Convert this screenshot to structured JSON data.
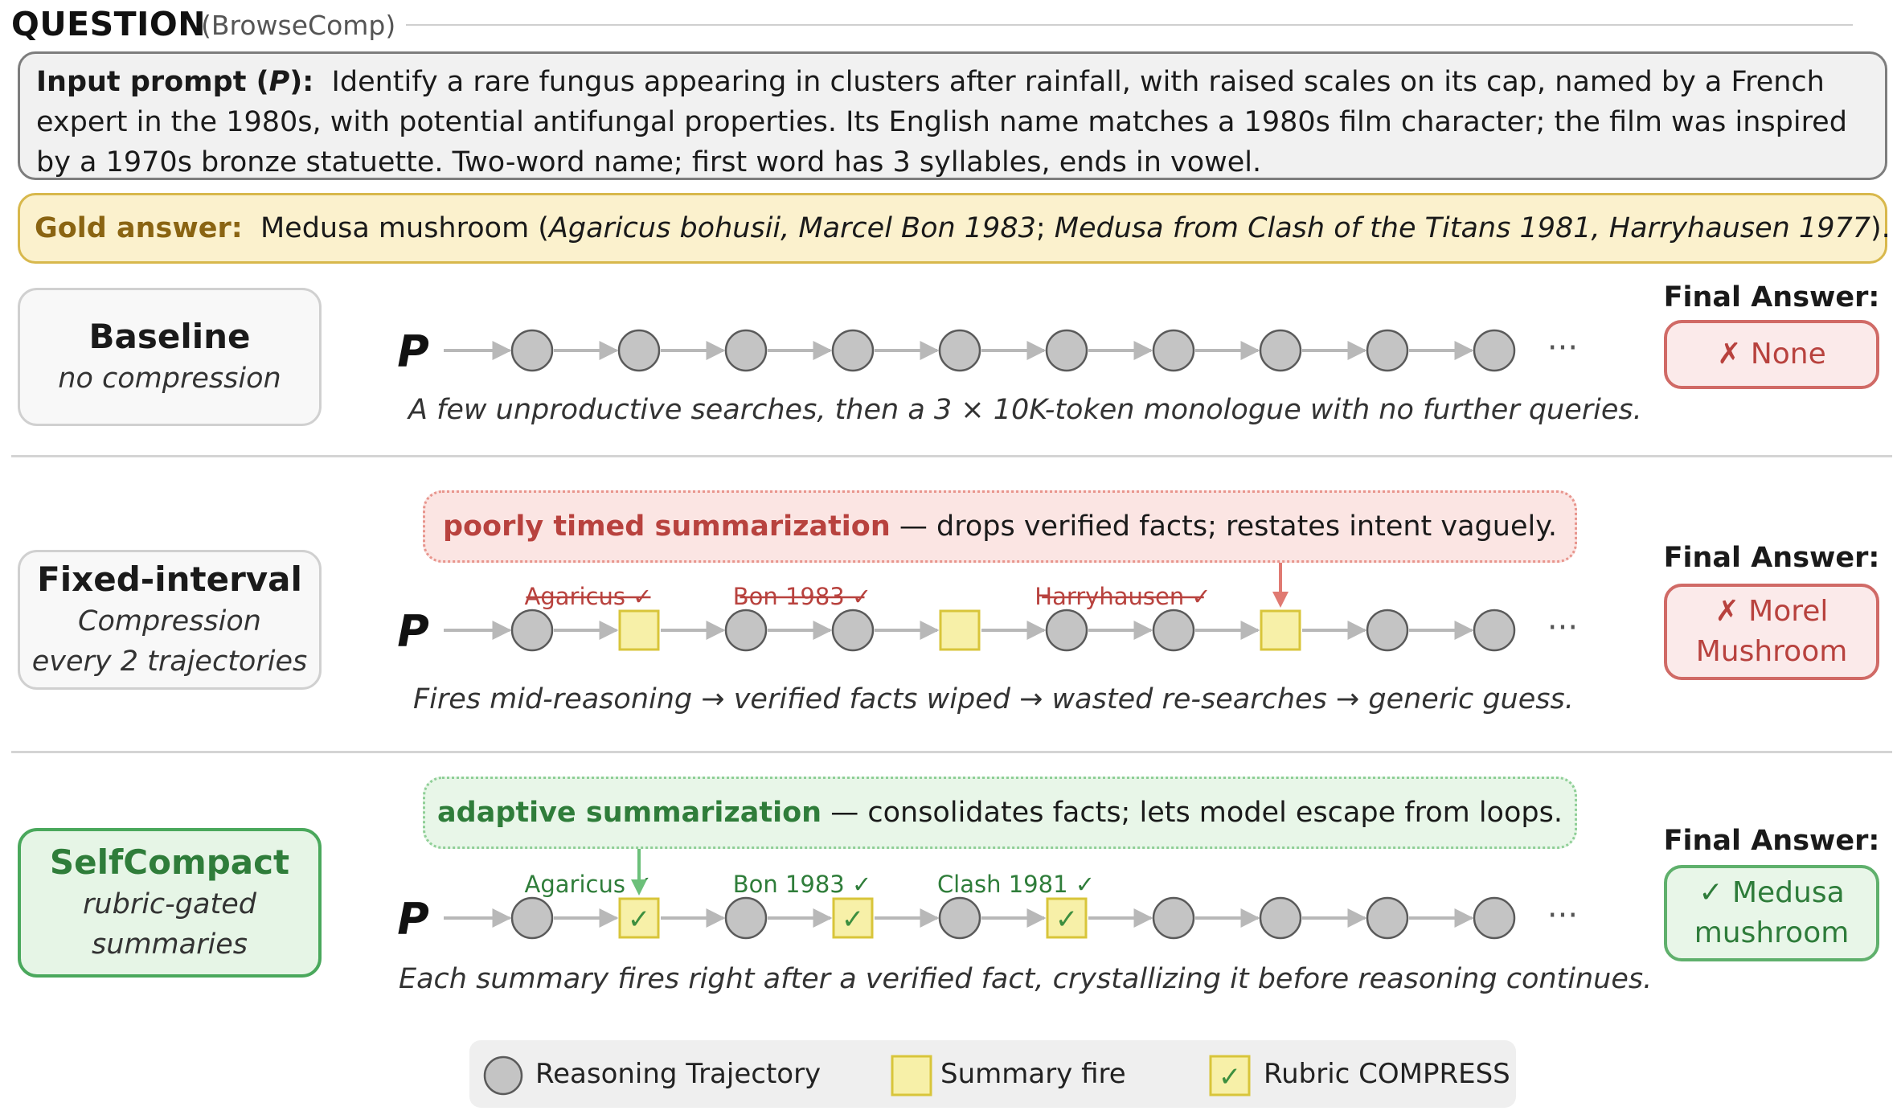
{
  "question": {
    "title": "QUESTION",
    "subtitle": "(BrowseComp)"
  },
  "prompt": {
    "label_pre": "Input prompt (",
    "label_var": "P",
    "label_post": "):",
    "text": "Identify a rare fungus appearing in clusters after rainfall, with raised scales on its cap, named by a French expert in the 1980s, with potential antifungal properties. Its English name matches a 1980s film character; the film was inspired by a 1970s bronze statuette. Two-word name; first word has 3 syllables, ends in vowel."
  },
  "gold": {
    "label": "Gold answer:",
    "plain1": "Medusa mushroom (",
    "it1": "Agaricus bohusii, Marcel Bon 1983",
    "plain2": "; ",
    "it2": "Medusa from Clash of the Titans 1981, Harryhausen 1977",
    "plain3": ")."
  },
  "final_answer_label": "Final Answer:",
  "p_symbol": "P",
  "ellipsis": "···",
  "rows": [
    {
      "name": "Baseline",
      "sub1": "no compression",
      "sub2": "",
      "answer_line1": "✗ None",
      "answer_line2": "",
      "answer_ok": false,
      "caption": "A few unproductive searches, then a 3 × 10K-token monologue with no further queries.",
      "callout": null,
      "nodes": [
        "c",
        "c",
        "c",
        "c",
        "c",
        "c",
        "c",
        "c",
        "c",
        "c"
      ],
      "fact_labels": []
    },
    {
      "name": "Fixed-interval",
      "sub1": "Compression",
      "sub2": "every 2 trajectories",
      "answer_line1": "✗ Morel",
      "answer_line2": "Mushroom",
      "answer_ok": false,
      "caption": "Fires mid-reasoning → verified facts wiped → wasted re-searches → generic guess.",
      "callout": {
        "highlight": "poorly timed summarization",
        "rest": " — drops verified facts; restates intent vaguely.",
        "target_node": 7
      },
      "nodes": [
        "c",
        "s",
        "c",
        "c",
        "s",
        "c",
        "c",
        "s",
        "c",
        "c"
      ],
      "fact_labels": [
        {
          "text": "Agaricus ✓",
          "after_node": 0,
          "struck": true
        },
        {
          "text": "Bon 1983 ✓",
          "after_node": 2,
          "struck": true
        },
        {
          "text": "Harryhausen ✓",
          "after_node": 5,
          "struck": true
        }
      ]
    },
    {
      "name": "SelfCompact",
      "sub1": "rubric-gated",
      "sub2": "summaries",
      "answer_line1": "✓ Medusa",
      "answer_line2": "mushroom",
      "answer_ok": true,
      "caption": "Each summary fires right after a verified fact, crystallizing it before reasoning continues.",
      "callout": {
        "highlight": "adaptive summarization",
        "rest": " — consolidates facts; lets model escape from loops.",
        "target_node": 1
      },
      "nodes": [
        "c",
        "r",
        "c",
        "r",
        "c",
        "r",
        "c",
        "c",
        "c",
        "c"
      ],
      "fact_labels": [
        {
          "text": "Agaricus ✓",
          "after_node": 0,
          "struck": false
        },
        {
          "text": "Bon 1983 ✓",
          "after_node": 2,
          "struck": false
        },
        {
          "text": "Clash 1981 ✓",
          "after_node": 4,
          "struck": false
        }
      ]
    }
  ],
  "legend": {
    "items": [
      {
        "icon": "circle",
        "label": "Reasoning Trajectory"
      },
      {
        "icon": "square",
        "label": "Summary fire"
      },
      {
        "icon": "check-square",
        "label": "Rubric COMPRESS"
      }
    ]
  },
  "colors": {
    "node_gray": "#c4c4c4",
    "node_stroke": "#5a5a5a",
    "summary_fill": "#f7f0a8",
    "summary_stroke": "#d8c53a",
    "arrow": "#b8b8b8",
    "red": "#b8423e",
    "green": "#2f7d3a"
  }
}
